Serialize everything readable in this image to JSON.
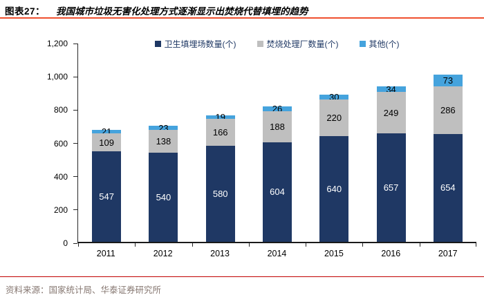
{
  "header": {
    "figure_label": "图表27：",
    "title": "我国城市垃圾无害化处理方式逐渐显示出焚烧代替填埋的趋势"
  },
  "footer": {
    "source": "资料来源：国家统计局、华泰证券研究所"
  },
  "colors": {
    "title_rule": "#EF502E",
    "source_rule": "#C00000",
    "source_text": "#877872",
    "legend_text": "#1F3864",
    "axis": "#262626"
  },
  "chart_data": {
    "type": "bar",
    "stacked": true,
    "categories": [
      "2011",
      "2012",
      "2013",
      "2014",
      "2015",
      "2016",
      "2017"
    ],
    "series": [
      {
        "name": "卫生填埋场数量(个)",
        "color": "#1F3864",
        "label_color": "#FFFFFF",
        "values": [
          547,
          540,
          580,
          604,
          640,
          657,
          654
        ]
      },
      {
        "name": "焚烧处理厂数量(个)",
        "color": "#BFBFBF",
        "label_color": "#000000",
        "values": [
          109,
          138,
          166,
          188,
          220,
          249,
          286
        ]
      },
      {
        "name": "其他(个)",
        "color": "#45A3DD",
        "label_color": "#000000",
        "values": [
          21,
          23,
          19,
          26,
          30,
          34,
          73
        ]
      }
    ],
    "ylim": [
      0,
      1200
    ],
    "ytick_step": 200,
    "yticks": [
      "0",
      "200",
      "400",
      "600",
      "800",
      "1,000",
      "1,200"
    ],
    "grid": false,
    "legend_position": "top-center",
    "data_labels": true
  }
}
